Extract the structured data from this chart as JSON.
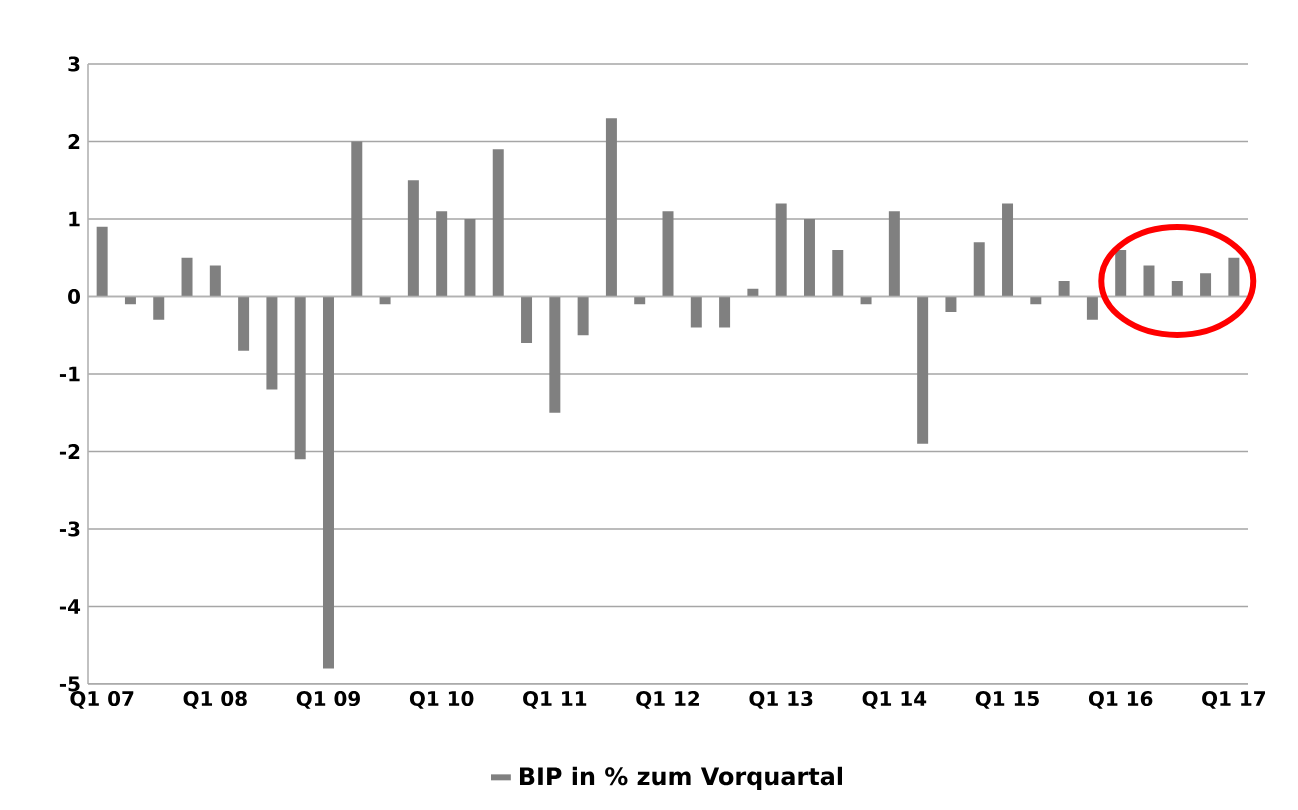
{
  "chart_data": {
    "type": "bar",
    "categories": [
      "Q1 07",
      null,
      null,
      null,
      "Q1 08",
      null,
      null,
      null,
      "Q1 09",
      null,
      null,
      null,
      "Q1 10",
      null,
      null,
      null,
      "Q1 11",
      null,
      null,
      null,
      "Q1 12",
      null,
      null,
      null,
      "Q1 13",
      null,
      null,
      null,
      "Q1 14",
      null,
      null,
      null,
      "Q1 15",
      null,
      null,
      null,
      "Q1 16",
      null,
      null,
      null,
      "Q1 17"
    ],
    "series": [
      {
        "name": "BIP in % zum Vorquartal",
        "color": "#808080",
        "values": [
          0.9,
          -0.1,
          -0.3,
          0.5,
          0.4,
          -0.7,
          -1.2,
          -2.1,
          -4.8,
          2.0,
          -0.1,
          1.5,
          1.1,
          1.0,
          1.9,
          -0.6,
          -1.5,
          -0.5,
          2.3,
          -0.1,
          1.1,
          -0.4,
          -0.4,
          0.1,
          1.2,
          1.0,
          0.6,
          -0.1,
          1.1,
          -1.9,
          -0.2,
          0.7,
          1.2,
          -0.1,
          0.2,
          -0.3,
          0.6,
          0.4,
          0.2,
          0.3,
          0.5
        ]
      }
    ],
    "ylim": [
      -5,
      3
    ],
    "yticks": [
      -5,
      -4,
      -3,
      -2,
      -1,
      0,
      1,
      2,
      3
    ],
    "grid": "y",
    "legend": "bottom"
  }
}
